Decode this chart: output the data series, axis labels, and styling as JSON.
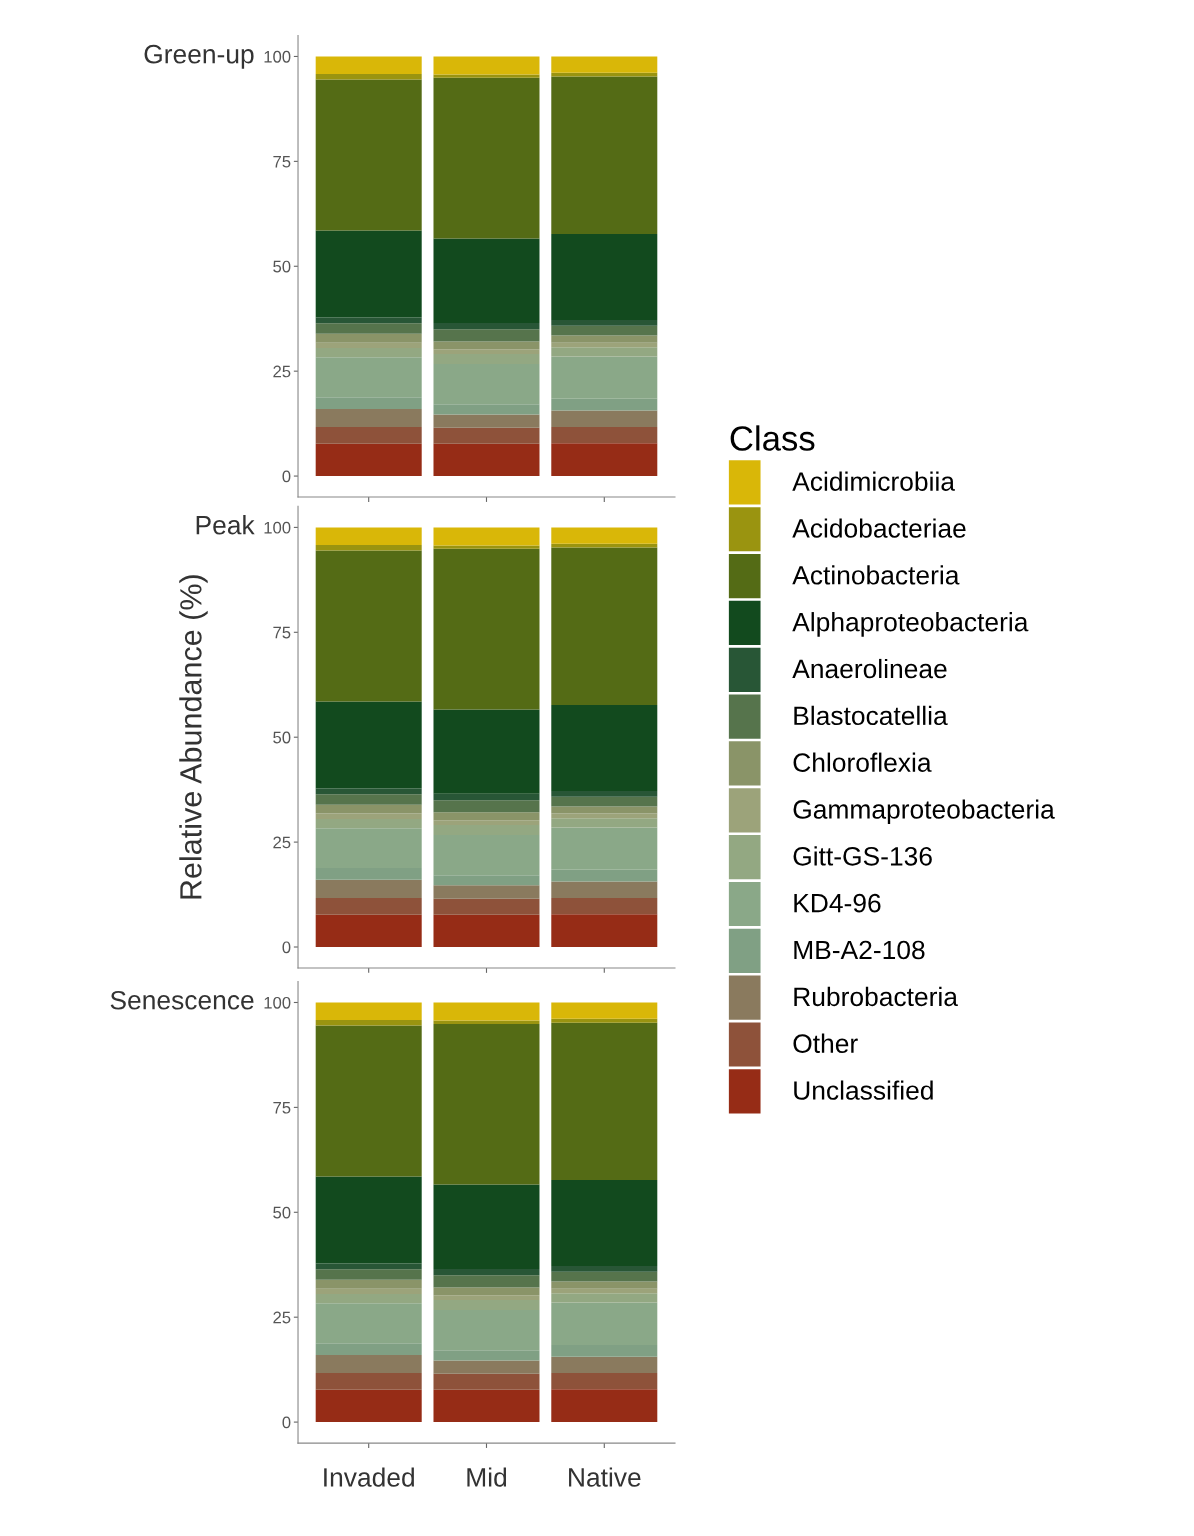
{
  "chart_data": [
    {
      "type": "bar",
      "stacked": true,
      "title": "Green-up",
      "legend_title": "Class",
      "legend": "right",
      "categories": [
        null,
        null,
        null
      ],
      "ylim": [
        -5,
        105
      ],
      "yticks": [
        0,
        25,
        50,
        75,
        100
      ],
      "grid": false,
      "series": [
        {
          "name": "Unclassified",
          "color": "#962c16",
          "values": [
            7.7,
            7.7,
            7.8
          ]
        },
        {
          "name": "Other",
          "color": "#8e523a",
          "values": [
            4.0,
            3.8,
            3.9
          ]
        },
        {
          "name": "Rubrobacteria",
          "color": "#8a7a5e",
          "values": [
            4.3,
            3.2,
            3.9
          ]
        },
        {
          "name": "MB-A2-108",
          "color": "#80a084",
          "values": [
            2.8,
            2.4,
            2.8
          ]
        },
        {
          "name": "KD4-96",
          "color": "#8aa888",
          "values": [
            9.5,
            9.6,
            10.1
          ]
        },
        {
          "name": "Gitt-GS-136",
          "color": "#93a882",
          "values": [
            2.2,
            2.4,
            2.2
          ]
        },
        {
          "name": "Gammaproteobacteria",
          "color": "#9ca37a",
          "values": [
            1.3,
            1.1,
            1.1
          ]
        },
        {
          "name": "Chloroflexia",
          "color": "#8a9468",
          "values": [
            2.1,
            1.9,
            1.7
          ]
        },
        {
          "name": "Blastocatellia",
          "color": "#56744c",
          "values": [
            2.5,
            2.9,
            2.3
          ]
        },
        {
          "name": "Anaerolineae",
          "color": "#285636",
          "values": [
            1.4,
            1.5,
            1.4
          ]
        },
        {
          "name": "Alphaproteobacteria",
          "color": "#124a1e",
          "values": [
            20.7,
            20.1,
            20.5
          ]
        },
        {
          "name": "Actinobacteria",
          "color": "#546b15",
          "values": [
            36.0,
            38.3,
            37.5
          ]
        },
        {
          "name": "Acidobacteriae",
          "color": "#9a9410",
          "values": [
            1.3,
            0.8,
            0.9
          ]
        },
        {
          "name": "Acidimicrobiia",
          "color": "#d9b708",
          "values": [
            4.2,
            4.3,
            3.9
          ]
        }
      ]
    },
    {
      "type": "bar",
      "stacked": true,
      "title": "Peak",
      "ylabel": "Relative Abundance (%)",
      "categories": [
        null,
        null,
        null
      ],
      "ylim": [
        -5,
        105
      ],
      "yticks": [
        0,
        25,
        50,
        75,
        100
      ],
      "grid": false,
      "series": [
        {
          "color": "#962c16",
          "values": [
            7.7,
            7.7,
            7.8
          ]
        },
        {
          "color": "#8e523a",
          "values": [
            4.0,
            3.8,
            3.9
          ]
        },
        {
          "color": "#8a7a5e",
          "values": [
            4.3,
            3.2,
            3.9
          ]
        },
        {
          "color": "#80a084",
          "values": [
            2.8,
            2.4,
            2.8
          ]
        },
        {
          "color": "#8aa888",
          "values": [
            9.5,
            9.6,
            10.1
          ]
        },
        {
          "color": "#93a882",
          "values": [
            2.2,
            2.4,
            2.2
          ]
        },
        {
          "color": "#9ca37a",
          "values": [
            1.3,
            1.1,
            1.1
          ]
        },
        {
          "color": "#8a9468",
          "values": [
            2.1,
            1.9,
            1.7
          ]
        },
        {
          "color": "#56744c",
          "values": [
            2.5,
            2.9,
            2.3
          ]
        },
        {
          "color": "#285636",
          "values": [
            1.4,
            1.5,
            1.4
          ]
        },
        {
          "color": "#124a1e",
          "values": [
            20.7,
            20.1,
            20.5
          ]
        },
        {
          "color": "#546b15",
          "values": [
            36.0,
            38.3,
            37.5
          ]
        },
        {
          "color": "#9a9410",
          "values": [
            1.3,
            0.8,
            0.9
          ]
        },
        {
          "color": "#d9b708",
          "values": [
            4.2,
            4.3,
            3.9
          ]
        }
      ]
    },
    {
      "type": "bar",
      "stacked": true,
      "title": "Senescence",
      "categories": [
        "Invaded",
        "Mid",
        "Native"
      ],
      "ylim": [
        -5,
        105
      ],
      "yticks": [
        0,
        25,
        50,
        75,
        100
      ],
      "grid": false,
      "series": [
        {
          "color": "#962c16",
          "values": [
            7.7,
            7.7,
            7.8
          ]
        },
        {
          "color": "#8e523a",
          "values": [
            4.0,
            3.8,
            3.9
          ]
        },
        {
          "color": "#8a7a5e",
          "values": [
            4.3,
            3.2,
            3.9
          ]
        },
        {
          "color": "#80a084",
          "values": [
            2.8,
            2.4,
            2.8
          ]
        },
        {
          "color": "#8aa888",
          "values": [
            9.5,
            9.6,
            10.1
          ]
        },
        {
          "color": "#93a882",
          "values": [
            2.2,
            2.4,
            2.2
          ]
        },
        {
          "color": "#9ca37a",
          "values": [
            1.3,
            1.1,
            1.1
          ]
        },
        {
          "color": "#8a9468",
          "values": [
            2.1,
            1.9,
            1.7
          ]
        },
        {
          "color": "#56744c",
          "values": [
            2.5,
            2.9,
            2.3
          ]
        },
        {
          "color": "#285636",
          "values": [
            1.4,
            1.5,
            1.4
          ]
        },
        {
          "color": "#124a1e",
          "values": [
            20.7,
            20.1,
            20.5
          ]
        },
        {
          "color": "#546b15",
          "values": [
            36.0,
            38.3,
            37.5
          ]
        },
        {
          "color": "#9a9410",
          "values": [
            1.3,
            0.8,
            0.9
          ]
        },
        {
          "color": "#d9b708",
          "values": [
            4.2,
            4.3,
            3.9
          ]
        }
      ]
    }
  ]
}
